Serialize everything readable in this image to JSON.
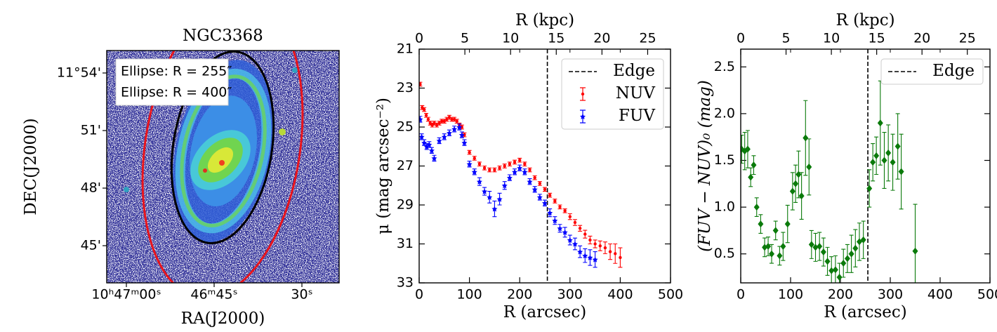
{
  "chart_data": [
    {
      "type": "image",
      "title": "NGC3368",
      "xlabel": "RA(J2000)",
      "ylabel": "DEC(J2000)",
      "xlim": [
        161.764,
        161.5985
      ],
      "ylim": [
        11.7177,
        11.9195
      ],
      "xticks": [
        {
          "value": 161.75,
          "label": "10ʰ47ᵐ00ˢ"
        },
        {
          "value": 161.6875,
          "label": "46ᵐ45ˢ"
        },
        {
          "value": 161.625,
          "label": "30ˢ"
        }
      ],
      "yticks": [
        {
          "value": 11.9,
          "label": "11°54'"
        },
        {
          "value": 11.85,
          "label": "51'"
        },
        {
          "value": 11.8,
          "label": "48'"
        },
        {
          "value": 11.75,
          "label": "45'"
        }
      ],
      "ellipses": [
        {
          "label": "Ellipse: R = 255″",
          "R": 255,
          "color": "#000000"
        },
        {
          "label": "Ellipse: R = 400″",
          "R": 400,
          "color": "#e8141c"
        }
      ]
    },
    {
      "type": "errorbar",
      "xlabel": "R (arcsec)",
      "x2label": "R (kpc)",
      "ylabel": "μ (mag arcsec⁻²)",
      "xlim": [
        0,
        500
      ],
      "xticks": [
        0,
        100,
        200,
        300,
        400,
        500
      ],
      "x2lim": [
        0,
        27.5
      ],
      "x2ticks": [
        0,
        5,
        10,
        15,
        20,
        25
      ],
      "ylim": [
        33,
        21
      ],
      "yticks": [
        21,
        23,
        25,
        27,
        29,
        31,
        33
      ],
      "edge": {
        "value": 255,
        "label": "Edge"
      },
      "legend": "upper right",
      "series": [
        {
          "name": "NUV",
          "color": "#ff0000",
          "marker": "circle",
          "x": [
            2,
            6,
            10,
            14,
            18,
            22,
            26,
            30,
            35,
            40,
            45,
            50,
            55,
            60,
            65,
            70,
            75,
            80,
            85,
            90,
            100,
            110,
            120,
            130,
            140,
            150,
            160,
            170,
            180,
            190,
            200,
            210,
            220,
            230,
            240,
            250,
            260,
            270,
            280,
            290,
            300,
            310,
            320,
            330,
            340,
            350,
            360,
            370,
            380,
            390,
            400
          ],
          "values": [
            22.8,
            24.0,
            24.1,
            24.4,
            24.6,
            24.8,
            24.9,
            24.8,
            24.9,
            24.8,
            24.7,
            24.7,
            24.6,
            24.5,
            24.6,
            24.6,
            24.7,
            24.9,
            25.0,
            25.4,
            26.3,
            26.6,
            26.9,
            27.1,
            27.2,
            27.2,
            27.1,
            27.0,
            26.9,
            26.8,
            26.7,
            26.9,
            27.2,
            27.6,
            27.9,
            28.2,
            28.5,
            28.8,
            29.1,
            29.3,
            29.6,
            29.9,
            30.2,
            30.5,
            30.8,
            31.0,
            31.1,
            31.2,
            31.4,
            31.5,
            31.7
          ],
          "errors": [
            0.1,
            0.1,
            0.1,
            0.1,
            0.1,
            0.1,
            0.1,
            0.1,
            0.1,
            0.1,
            0.1,
            0.1,
            0.1,
            0.1,
            0.1,
            0.1,
            0.1,
            0.1,
            0.1,
            0.1,
            0.1,
            0.1,
            0.1,
            0.1,
            0.1,
            0.1,
            0.1,
            0.1,
            0.1,
            0.1,
            0.1,
            0.1,
            0.1,
            0.1,
            0.1,
            0.1,
            0.1,
            0.1,
            0.1,
            0.1,
            0.15,
            0.15,
            0.15,
            0.2,
            0.2,
            0.2,
            0.25,
            0.3,
            0.4,
            0.5,
            0.5
          ]
        },
        {
          "name": "FUV",
          "color": "#0000ff",
          "marker": "star",
          "x": [
            2,
            5,
            10,
            15,
            20,
            25,
            30,
            40,
            50,
            60,
            70,
            80,
            85,
            90,
            100,
            110,
            120,
            130,
            140,
            150,
            160,
            170,
            180,
            190,
            200,
            210,
            220,
            230,
            240,
            250,
            260,
            270,
            280,
            290,
            300,
            310,
            320,
            330,
            340,
            350
          ],
          "values": [
            24.6,
            25.5,
            25.8,
            26.0,
            25.9,
            26.2,
            26.6,
            25.7,
            25.5,
            25.3,
            25.1,
            25.0,
            25.4,
            25.8,
            26.9,
            27.3,
            27.8,
            28.3,
            28.6,
            29.2,
            28.7,
            28.0,
            27.6,
            27.3,
            27.1,
            27.3,
            27.8,
            28.2,
            28.6,
            28.9,
            29.4,
            29.8,
            30.2,
            30.4,
            30.8,
            31.0,
            31.4,
            31.6,
            31.7,
            31.8
          ],
          "errors": [
            0.15,
            0.15,
            0.15,
            0.15,
            0.15,
            0.15,
            0.15,
            0.15,
            0.15,
            0.15,
            0.15,
            0.15,
            0.15,
            0.15,
            0.15,
            0.15,
            0.2,
            0.2,
            0.3,
            0.4,
            0.3,
            0.2,
            0.15,
            0.15,
            0.15,
            0.15,
            0.15,
            0.15,
            0.15,
            0.15,
            0.2,
            0.2,
            0.2,
            0.25,
            0.25,
            0.3,
            0.3,
            0.35,
            0.4,
            0.4
          ]
        }
      ]
    },
    {
      "type": "errorbar",
      "xlabel": "R (arcsec)",
      "x2label": "R (kpc)",
      "ylabel": "(FUV − NUV)₀ (mag)",
      "xlim": [
        0,
        500
      ],
      "xticks": [
        0,
        100,
        200,
        300,
        400,
        500
      ],
      "x2lim": [
        0,
        27.5
      ],
      "x2ticks": [
        0,
        5,
        10,
        15,
        20,
        25
      ],
      "ylim": [
        0.19,
        2.69
      ],
      "yticks": [
        0.5,
        {
          "value": 1.0,
          "label": "1.0"
        },
        1.5,
        {
          "value": 2.0,
          "label": "2.0"
        },
        2.5
      ],
      "edge": {
        "value": 255,
        "label": "Edge"
      },
      "legend": "upper right",
      "series": [
        {
          "color": "#0a7a0a",
          "marker": "diamond",
          "x": [
            2,
            8,
            14,
            20,
            26,
            32,
            40,
            48,
            55,
            62,
            70,
            78,
            85,
            94,
            104,
            110,
            116,
            122,
            130,
            137,
            142,
            150,
            158,
            166,
            174,
            182,
            190,
            198,
            206,
            214,
            222,
            230,
            238,
            246,
            258,
            265,
            272,
            280,
            288,
            296,
            305,
            315,
            322,
            350
          ],
          "values": [
            1.62,
            1.6,
            1.62,
            1.32,
            1.45,
            1.0,
            0.82,
            0.57,
            0.58,
            0.5,
            0.75,
            0.48,
            0.58,
            0.82,
            1.17,
            1.25,
            1.35,
            1.12,
            1.74,
            1.43,
            0.6,
            0.57,
            0.58,
            0.52,
            0.42,
            0.32,
            0.33,
            0.25,
            0.4,
            0.45,
            0.5,
            0.56,
            0.63,
            0.65,
            1.2,
            1.48,
            1.55,
            1.9,
            1.5,
            1.58,
            1.48,
            1.65,
            1.38,
            0.53
          ],
          "errors": [
            0.15,
            0.2,
            0.2,
            0.1,
            0.1,
            0.1,
            0.1,
            0.1,
            0.1,
            0.1,
            0.1,
            0.1,
            0.15,
            0.2,
            0.2,
            0.2,
            0.25,
            0.25,
            0.4,
            0.3,
            0.15,
            0.15,
            0.15,
            0.15,
            0.15,
            0.15,
            0.15,
            0.15,
            0.15,
            0.15,
            0.2,
            0.2,
            0.2,
            0.2,
            0.2,
            0.2,
            0.2,
            0.45,
            0.3,
            0.3,
            0.3,
            0.35,
            0.4,
            0.5
          ]
        }
      ]
    }
  ]
}
